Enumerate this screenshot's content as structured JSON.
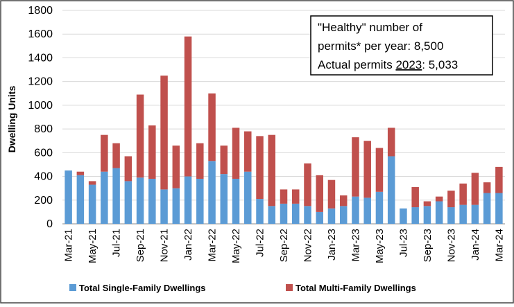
{
  "chart_data": {
    "type": "bar",
    "stacked": true,
    "ylabel": "Dwelling Units",
    "ylim": [
      0,
      1800
    ],
    "yticks": [
      0,
      200,
      400,
      600,
      800,
      1000,
      1200,
      1400,
      1600,
      1800
    ],
    "grid": true,
    "legend_position": "bottom",
    "categories": [
      "Mar-21",
      "Apr-21",
      "May-21",
      "Jun-21",
      "Jul-21",
      "Aug-21",
      "Sep-21",
      "Oct-21",
      "Nov-21",
      "Dec-21",
      "Jan-22",
      "Feb-22",
      "Mar-22",
      "Apr-22",
      "May-22",
      "Jun-22",
      "Jul-22",
      "Aug-22",
      "Sep-22",
      "Oct-22",
      "Nov-22",
      "Dec-22",
      "Jan-23",
      "Feb-23",
      "Mar-23",
      "Apr-23",
      "May-23",
      "Jun-23",
      "Jul-23",
      "Aug-23",
      "Sep-23",
      "Oct-23",
      "Nov-23",
      "Dec-23",
      "Jan-24",
      "Feb-24",
      "Mar-24"
    ],
    "xtick_labels": [
      "Mar-21",
      "May-21",
      "Jul-21",
      "Sep-21",
      "Nov-21",
      "Jan-22",
      "Mar-22",
      "May-22",
      "Jul-22",
      "Sep-22",
      "Nov-22",
      "Jan-23",
      "Mar-23",
      "May-23",
      "Jul-23",
      "Sep-23",
      "Nov-23",
      "Jan-24",
      "Mar-24"
    ],
    "series": [
      {
        "name": "Total Single-Family Dwellings",
        "color": "#5b9bd5",
        "values": [
          450,
          410,
          330,
          440,
          470,
          360,
          390,
          380,
          290,
          300,
          400,
          380,
          530,
          420,
          380,
          440,
          210,
          150,
          170,
          170,
          150,
          100,
          130,
          150,
          230,
          220,
          270,
          570,
          130,
          140,
          150,
          190,
          140,
          160,
          160,
          260,
          260
        ]
      },
      {
        "name": "Total Multi-Family Dwellings",
        "color": "#c0504d",
        "values": [
          0,
          30,
          30,
          310,
          210,
          210,
          700,
          450,
          960,
          360,
          1180,
          300,
          570,
          240,
          430,
          340,
          530,
          600,
          120,
          120,
          360,
          310,
          240,
          90,
          500,
          480,
          370,
          240,
          0,
          170,
          40,
          40,
          140,
          180,
          270,
          90,
          220
        ]
      }
    ],
    "annotation": {
      "line1": "\"Healthy\" number of",
      "line2": "permits* per year: 8,500",
      "line3_prefix": "Actual permits ",
      "line3_year": "2023",
      "line3_suffix": ": 5,033"
    }
  }
}
